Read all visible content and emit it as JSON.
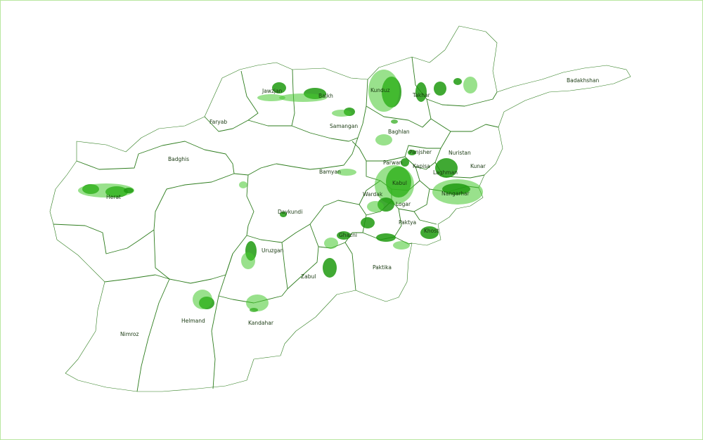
{
  "colors": {
    "border": "#b8e6a0",
    "province_line": "#2e7d1e",
    "vegetation_dark": "#1f9a0f",
    "vegetation_light": "#46c82e",
    "label": "#1a3a12"
  },
  "provinces": [
    {
      "id": "badakhshan",
      "label": "Badakhshan"
    },
    {
      "id": "jawzjan",
      "label": "Jawzjan"
    },
    {
      "id": "balkh",
      "label": "Balkh"
    },
    {
      "id": "kunduz",
      "label": "Kunduz"
    },
    {
      "id": "takhar",
      "label": "Takhar"
    },
    {
      "id": "faryab",
      "label": "Faryab"
    },
    {
      "id": "samangan",
      "label": "Samangan"
    },
    {
      "id": "baghlan",
      "label": "Baghlan"
    },
    {
      "id": "badghis",
      "label": "Badghis"
    },
    {
      "id": "panjsher",
      "label": "Panjsher"
    },
    {
      "id": "nuristan",
      "label": "Nuristan"
    },
    {
      "id": "parwan",
      "label": "Parwan"
    },
    {
      "id": "kapisa",
      "label": "Kapisa"
    },
    {
      "id": "kunar",
      "label": "Kunar"
    },
    {
      "id": "laghman",
      "label": "Laghman"
    },
    {
      "id": "bamyan",
      "label": "Bamyan"
    },
    {
      "id": "kabul",
      "label": "Kabul"
    },
    {
      "id": "herat",
      "label": "Herat"
    },
    {
      "id": "wardak",
      "label": "Wardak"
    },
    {
      "id": "nangarhar",
      "label": "Nangarhar"
    },
    {
      "id": "logar",
      "label": "Logar"
    },
    {
      "id": "daykundi",
      "label": "Daykundi"
    },
    {
      "id": "paktya",
      "label": "Paktya"
    },
    {
      "id": "khost",
      "label": "Khost"
    },
    {
      "id": "ghazni",
      "label": "Ghazni"
    },
    {
      "id": "uruzgan",
      "label": "Uruzgan"
    },
    {
      "id": "paktika",
      "label": "Paktika"
    },
    {
      "id": "zabul",
      "label": "Zabul"
    },
    {
      "id": "helmand",
      "label": "Helmand"
    },
    {
      "id": "kandahar",
      "label": "Kandahar"
    },
    {
      "id": "nimroz",
      "label": "Nimroz"
    }
  ]
}
